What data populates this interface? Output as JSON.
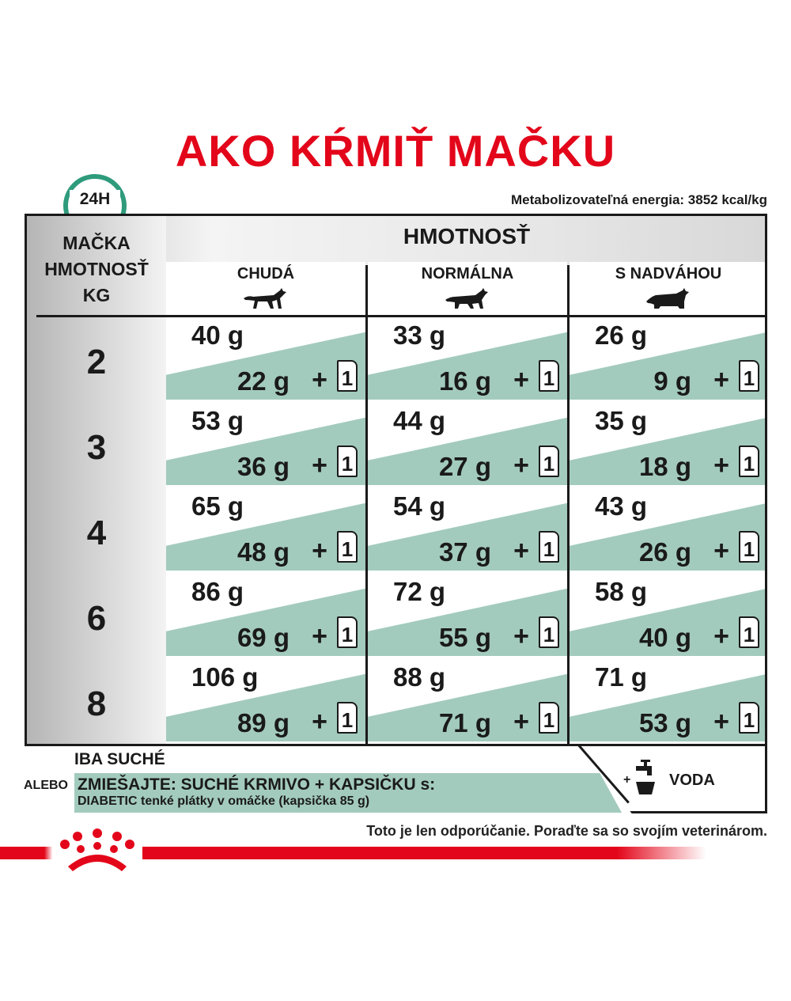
{
  "title": "AKO KŔMIŤ MAČKU",
  "daily_badge": "24H",
  "energy": "Metabolizovateľná energia: 3852 kcal/kg",
  "header": {
    "weight_group": "HMOTNOSŤ",
    "cat_weight": [
      "MAČKA",
      "HMOTNOSŤ",
      "KG"
    ],
    "columns": [
      "CHUDÁ",
      "NORMÁLNA",
      "S NADVÁHOU"
    ]
  },
  "rows": [
    {
      "kg": "2",
      "cells": [
        {
          "dry": "40 g",
          "mix": "22 g"
        },
        {
          "dry": "33 g",
          "mix": "16 g"
        },
        {
          "dry": "26 g",
          "mix": "9 g"
        }
      ]
    },
    {
      "kg": "3",
      "cells": [
        {
          "dry": "53 g",
          "mix": "36 g"
        },
        {
          "dry": "44 g",
          "mix": "27 g"
        },
        {
          "dry": "35 g",
          "mix": "18 g"
        }
      ]
    },
    {
      "kg": "4",
      "cells": [
        {
          "dry": "65 g",
          "mix": "48 g"
        },
        {
          "dry": "54 g",
          "mix": "37 g"
        },
        {
          "dry": "43 g",
          "mix": "26 g"
        }
      ]
    },
    {
      "kg": "6",
      "cells": [
        {
          "dry": "86 g",
          "mix": "69 g"
        },
        {
          "dry": "72 g",
          "mix": "55 g"
        },
        {
          "dry": "58 g",
          "mix": "40 g"
        }
      ]
    },
    {
      "kg": "8",
      "cells": [
        {
          "dry": "106 g",
          "mix": "89 g"
        },
        {
          "dry": "88 g",
          "mix": "71 g"
        },
        {
          "dry": "71 g",
          "mix": "53 g"
        }
      ]
    }
  ],
  "plus": "+",
  "pouch_count": "1",
  "legend": {
    "dry_only": "IBA SUCHÉ",
    "or": "ALEBO",
    "mix": "ZMIEŠAJTE: SUCHÉ KRMIVO + KAPSIČKU s:",
    "mix_detail": "DIABETIC tenké plátky v omáčke (kapsička 85 g)",
    "water_plus": "+",
    "water": "VODA"
  },
  "disclaimer": "Toto je len odporúčanie. Poraďte sa so svojím veterinárom.",
  "colors": {
    "brand_red": "#e3061a",
    "mint": "#a3cbbd",
    "clock_green": "#2e9b7c"
  }
}
